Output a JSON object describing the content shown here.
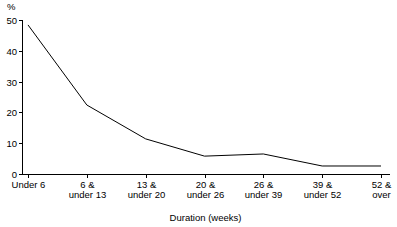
{
  "chart_data": {
    "type": "line",
    "y_label": "%",
    "x_label": "Duration (weeks)",
    "categories": [
      "Under 6",
      "6 & under 13",
      "13 & under 20",
      "20 & under 26",
      "26 & under 39",
      "39 & under 52",
      "52 & over"
    ],
    "values": [
      48.4,
      22.4,
      11.4,
      5.8,
      6.5,
      2.6,
      2.6
    ],
    "color": "#000000",
    "ylim": [
      0,
      50
    ],
    "yticks": [
      0,
      10,
      20,
      30,
      40,
      50
    ],
    "grid": false
  }
}
